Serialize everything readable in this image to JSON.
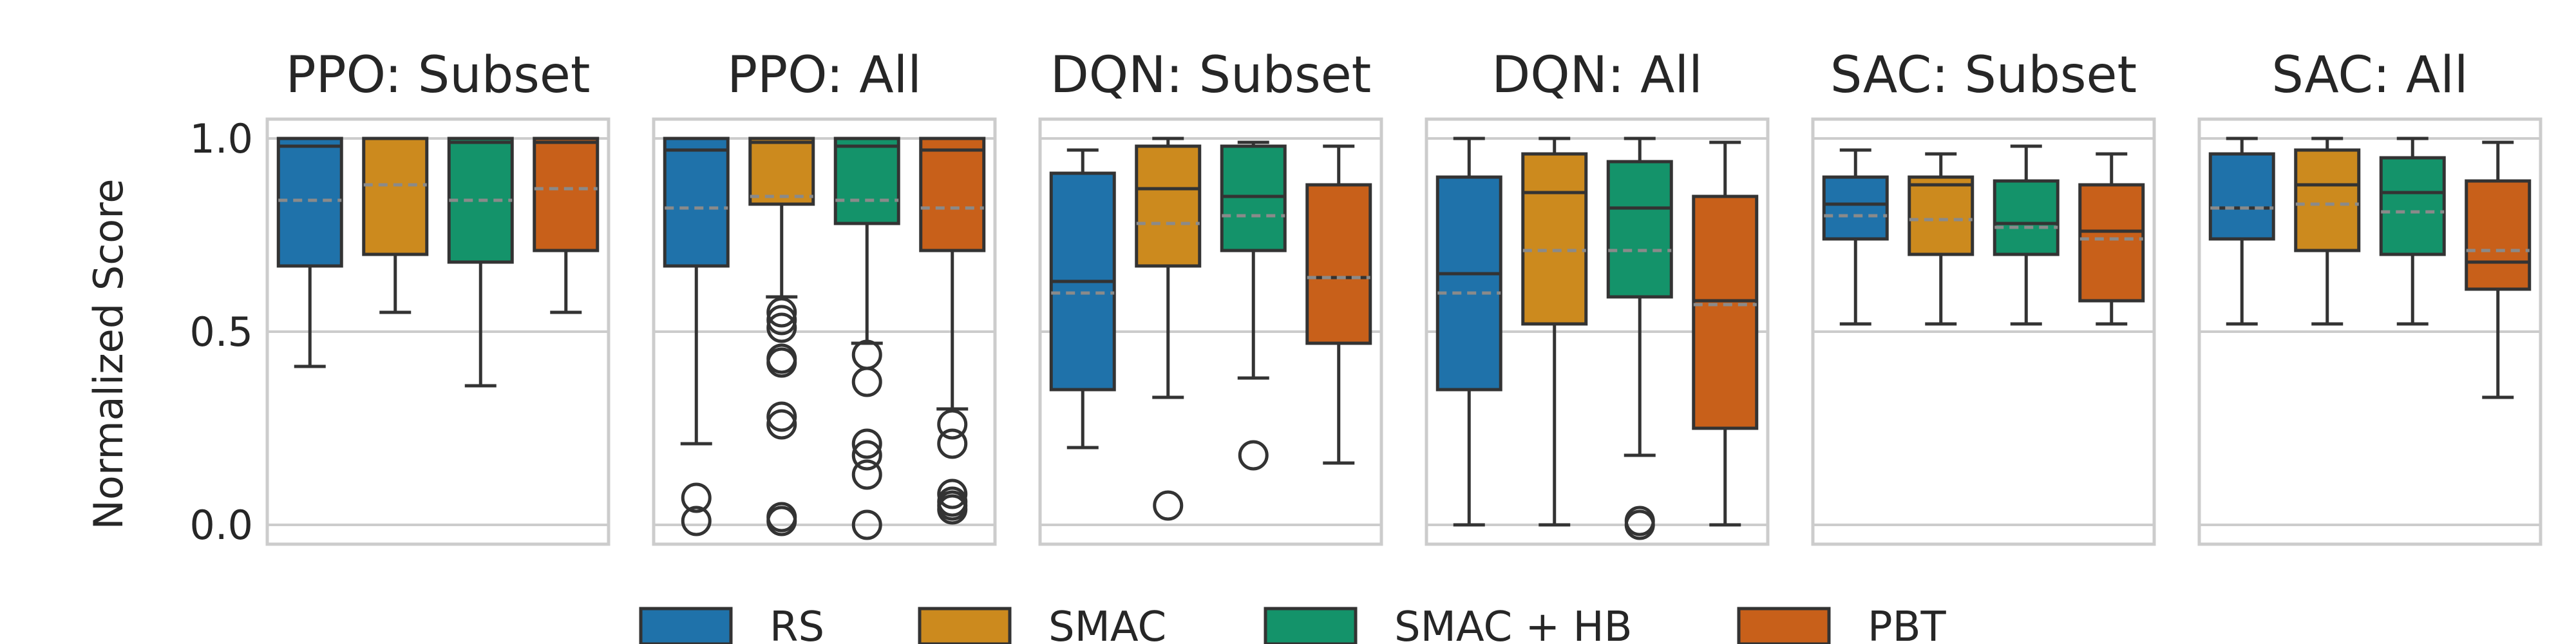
{
  "chart_data": {
    "type": "box",
    "ylabel": "Normalized Score",
    "ylim": [
      -0.05,
      1.05
    ],
    "yticks": [
      0.0,
      0.5,
      1.0
    ],
    "ytick_labels": [
      "0.0",
      "0.5",
      "1.0"
    ],
    "grid": true,
    "legend_placement": "bottom-center",
    "series": [
      {
        "name": "RS",
        "color": "#1f72aa"
      },
      {
        "name": "SMAC",
        "color": "#cc8a1e"
      },
      {
        "name": "SMAC + HB",
        "color": "#14936a"
      },
      {
        "name": "PBT",
        "color": "#c8601a"
      }
    ],
    "panels": [
      {
        "title": "PPO: Subset",
        "boxes": [
          {
            "series": "RS",
            "whislo": 0.41,
            "q1": 0.67,
            "med": 0.98,
            "q3": 1.0,
            "whishi": 1.0,
            "mean": 0.84,
            "fliers": []
          },
          {
            "series": "SMAC",
            "whislo": 0.55,
            "q1": 0.7,
            "med": 1.0,
            "q3": 1.0,
            "whishi": 1.0,
            "mean": 0.88,
            "fliers": []
          },
          {
            "series": "SMAC + HB",
            "whislo": 0.36,
            "q1": 0.68,
            "med": 0.99,
            "q3": 1.0,
            "whishi": 1.0,
            "mean": 0.84,
            "fliers": []
          },
          {
            "series": "PBT",
            "whislo": 0.55,
            "q1": 0.71,
            "med": 0.99,
            "q3": 1.0,
            "whishi": 1.0,
            "mean": 0.87,
            "fliers": []
          }
        ]
      },
      {
        "title": "PPO: All",
        "boxes": [
          {
            "series": "RS",
            "whislo": 0.21,
            "q1": 0.67,
            "med": 0.97,
            "q3": 1.0,
            "whishi": 1.0,
            "mean": 0.82,
            "fliers": [
              0.07,
              0.01
            ]
          },
          {
            "series": "SMAC",
            "whislo": 0.59,
            "q1": 0.83,
            "med": 0.99,
            "q3": 1.0,
            "whishi": 1.0,
            "mean": 0.85,
            "fliers": [
              0.55,
              0.53,
              0.51,
              0.43,
              0.42,
              0.28,
              0.26,
              0.02,
              0.01
            ]
          },
          {
            "series": "SMAC + HB",
            "whislo": 0.47,
            "q1": 0.78,
            "med": 0.98,
            "q3": 1.0,
            "whishi": 1.0,
            "mean": 0.84,
            "fliers": [
              0.44,
              0.37,
              0.21,
              0.18,
              0.13,
              0.0
            ]
          },
          {
            "series": "PBT",
            "whislo": 0.3,
            "q1": 0.71,
            "med": 0.97,
            "q3": 1.0,
            "whishi": 1.0,
            "mean": 0.82,
            "fliers": [
              0.26,
              0.21,
              0.08,
              0.06,
              0.05,
              0.04
            ]
          }
        ]
      },
      {
        "title": "DQN: Subset",
        "boxes": [
          {
            "series": "RS",
            "whislo": 0.2,
            "q1": 0.35,
            "med": 0.63,
            "q3": 0.91,
            "whishi": 0.97,
            "mean": 0.6,
            "fliers": []
          },
          {
            "series": "SMAC",
            "whislo": 0.33,
            "q1": 0.67,
            "med": 0.87,
            "q3": 0.98,
            "whishi": 1.0,
            "mean": 0.78,
            "fliers": [
              0.05
            ]
          },
          {
            "series": "SMAC + HB",
            "whislo": 0.38,
            "q1": 0.71,
            "med": 0.85,
            "q3": 0.98,
            "whishi": 0.99,
            "mean": 0.8,
            "fliers": [
              0.18
            ]
          },
          {
            "series": "PBT",
            "whislo": 0.16,
            "q1": 0.47,
            "med": 0.64,
            "q3": 0.88,
            "whishi": 0.98,
            "mean": 0.64,
            "fliers": []
          }
        ]
      },
      {
        "title": "DQN: All",
        "boxes": [
          {
            "series": "RS",
            "whislo": 0.0,
            "q1": 0.35,
            "med": 0.65,
            "q3": 0.9,
            "whishi": 1.0,
            "mean": 0.6,
            "fliers": []
          },
          {
            "series": "SMAC",
            "whislo": 0.0,
            "q1": 0.52,
            "med": 0.86,
            "q3": 0.96,
            "whishi": 1.0,
            "mean": 0.71,
            "fliers": []
          },
          {
            "series": "SMAC + HB",
            "whislo": 0.18,
            "q1": 0.59,
            "med": 0.82,
            "q3": 0.94,
            "whishi": 1.0,
            "mean": 0.71,
            "fliers": [
              0.01,
              0.0
            ]
          },
          {
            "series": "PBT",
            "whislo": 0.0,
            "q1": 0.25,
            "med": 0.58,
            "q3": 0.85,
            "whishi": 0.99,
            "mean": 0.57,
            "fliers": []
          }
        ]
      },
      {
        "title": "SAC: Subset",
        "boxes": [
          {
            "series": "RS",
            "whislo": 0.52,
            "q1": 0.74,
            "med": 0.83,
            "q3": 0.9,
            "whishi": 0.97,
            "mean": 0.8,
            "fliers": []
          },
          {
            "series": "SMAC",
            "whislo": 0.52,
            "q1": 0.7,
            "med": 0.88,
            "q3": 0.9,
            "whishi": 0.96,
            "mean": 0.79,
            "fliers": []
          },
          {
            "series": "SMAC + HB",
            "whislo": 0.52,
            "q1": 0.7,
            "med": 0.78,
            "q3": 0.89,
            "whishi": 0.98,
            "mean": 0.77,
            "fliers": []
          },
          {
            "series": "PBT",
            "whislo": 0.52,
            "q1": 0.58,
            "med": 0.76,
            "q3": 0.88,
            "whishi": 0.96,
            "mean": 0.74,
            "fliers": []
          }
        ]
      },
      {
        "title": "SAC: All",
        "boxes": [
          {
            "series": "RS",
            "whislo": 0.52,
            "q1": 0.74,
            "med": 0.82,
            "q3": 0.96,
            "whishi": 1.0,
            "mean": 0.82,
            "fliers": []
          },
          {
            "series": "SMAC",
            "whislo": 0.52,
            "q1": 0.71,
            "med": 0.88,
            "q3": 0.97,
            "whishi": 1.0,
            "mean": 0.83,
            "fliers": []
          },
          {
            "series": "SMAC + HB",
            "whislo": 0.52,
            "q1": 0.7,
            "med": 0.86,
            "q3": 0.95,
            "whishi": 1.0,
            "mean": 0.81,
            "fliers": []
          },
          {
            "series": "PBT",
            "whislo": 0.33,
            "q1": 0.61,
            "med": 0.68,
            "q3": 0.89,
            "whishi": 0.99,
            "mean": 0.71,
            "fliers": []
          }
        ]
      }
    ]
  }
}
